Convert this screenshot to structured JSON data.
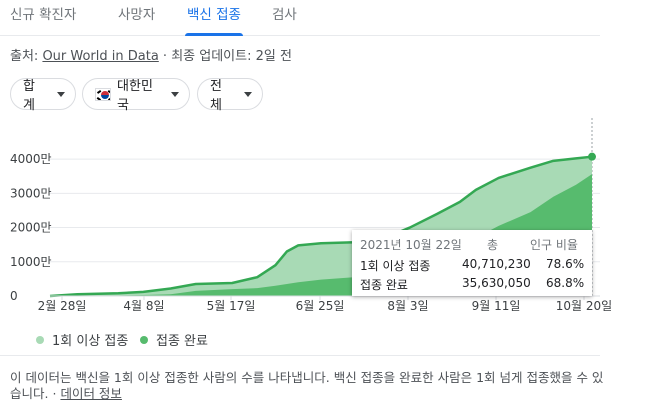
{
  "tabs": [
    {
      "label": "신규 확진자"
    },
    {
      "label": "사망자"
    },
    {
      "label": "백신 접종"
    },
    {
      "label": "검사"
    }
  ],
  "active_tab": "백신 접종",
  "source": {
    "prefix": "출처: ",
    "link": "Our World in Data",
    "suffix": " · 최종 업데이트: 2일 전"
  },
  "filters": {
    "total": "합계",
    "country": "대한민국",
    "group": "전체"
  },
  "colors": {
    "accent": "#1a73e8",
    "at_least_one_dose_fill": "#a8dab5",
    "fully_vaccinated_fill": "#57bb6e",
    "line": "#34a853"
  },
  "tooltip": {
    "date": "2021년 10월 22일",
    "col_total": "총",
    "col_ratio": "인구 비율",
    "rows": [
      {
        "label": "1회 이상 접종",
        "total": "40,710,230",
        "ratio": "78.6%"
      },
      {
        "label": "접종 완료",
        "total": "35,630,050",
        "ratio": "68.8%"
      }
    ]
  },
  "legend": [
    {
      "label": "1회 이상 접종",
      "color": "#a8dab5"
    },
    {
      "label": "접종 완료",
      "color": "#57bb6e"
    }
  ],
  "footnote": {
    "text": "이 데이터는 백신을 1회 이상 접종한 사람의 수를 나타냅니다. 백신 접종을 완료한 사람은 1회 넘게 접종했을 수 있습니다.",
    "separator": "·",
    "link": "데이터 정보"
  },
  "chart_data": {
    "type": "area",
    "title": "",
    "xlabel": "",
    "ylabel": "",
    "y_ticks": [
      "0",
      "1000만",
      "2000만",
      "3000만",
      "4000만"
    ],
    "x_ticks": [
      "2월 28일",
      "4월 8일",
      "5월 17일",
      "6월 25일",
      "8월 3일",
      "9월 11일",
      "10월 20일"
    ],
    "ylim": [
      0,
      45000000
    ],
    "grid": true,
    "x_dates": [
      "2021-02-26",
      "2021-03-10",
      "2021-03-28",
      "2021-04-08",
      "2021-04-20",
      "2021-05-01",
      "2021-05-17",
      "2021-05-28",
      "2021-06-05",
      "2021-06-10",
      "2021-06-15",
      "2021-06-25",
      "2021-07-10",
      "2021-07-25",
      "2021-08-03",
      "2021-08-15",
      "2021-08-25",
      "2021-09-01",
      "2021-09-11",
      "2021-09-25",
      "2021-10-05",
      "2021-10-15",
      "2021-10-22"
    ],
    "series": [
      {
        "name": "1회 이상 접종",
        "values": [
          0,
          500000,
          800000,
          1200000,
          2200000,
          3500000,
          3800000,
          5500000,
          9000000,
          13000000,
          14800000,
          15400000,
          15700000,
          17500000,
          20000000,
          24000000,
          27500000,
          31000000,
          34500000,
          37500000,
          39500000,
          40200000,
          40710230
        ]
      },
      {
        "name": "접종 완료",
        "values": [
          0,
          0,
          150000,
          300000,
          500000,
          1500000,
          2000000,
          2300000,
          3000000,
          3500000,
          4000000,
          4800000,
          5500000,
          7000000,
          9500000,
          11500000,
          14000000,
          17000000,
          20500000,
          24500000,
          29000000,
          32500000,
          35630050
        ]
      }
    ],
    "highlight_point": "2021-10-22"
  }
}
